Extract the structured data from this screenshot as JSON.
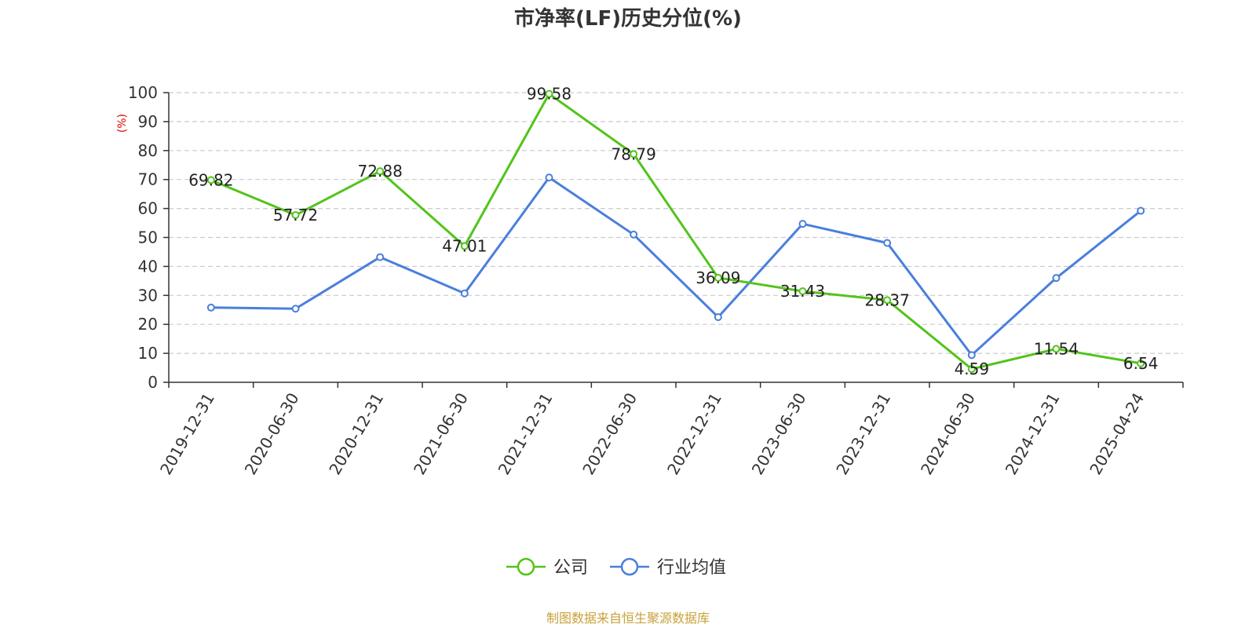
{
  "chart_data": {
    "type": "line",
    "title": "市净率(LF)历史分位(%)",
    "ylabel": "(%)",
    "ylim": [
      0,
      100
    ],
    "yticks": [
      0,
      10,
      20,
      30,
      40,
      50,
      60,
      70,
      80,
      90,
      100
    ],
    "categories": [
      "2019-12-31",
      "2020-06-30",
      "2020-12-31",
      "2021-06-30",
      "2021-12-31",
      "2022-06-30",
      "2022-12-31",
      "2023-06-30",
      "2023-12-31",
      "2024-06-30",
      "2024-12-31",
      "2025-04-24"
    ],
    "grid": true,
    "legend_position": "bottom",
    "series": [
      {
        "name": "公司",
        "color": "#52c41a",
        "values": [
          69.82,
          57.72,
          72.88,
          47.01,
          99.58,
          78.79,
          36.09,
          31.43,
          28.37,
          4.59,
          11.54,
          6.54
        ],
        "show_labels": true
      },
      {
        "name": "行业均值",
        "color": "#4a7fdc",
        "values": [
          25.8,
          25.4,
          43.2,
          30.7,
          70.7,
          51.0,
          22.5,
          54.7,
          48.1,
          9.4,
          36.0,
          59.2
        ],
        "show_labels": false
      }
    ]
  },
  "source": {
    "text": "制图数据来自恒生聚源数据库",
    "color": "#c8a13a"
  },
  "y_unit_color": "#e00000"
}
